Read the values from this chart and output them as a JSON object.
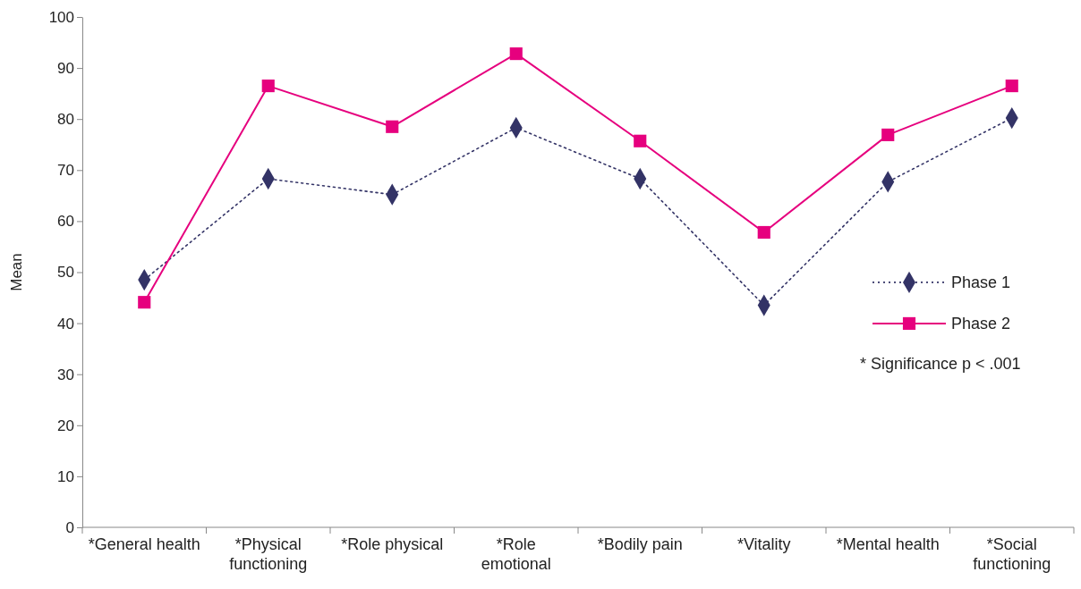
{
  "chart_data": {
    "type": "line",
    "ylabel": "Mean",
    "categories": [
      "*General health",
      "*Physical functioning",
      "*Role physical",
      "*Role emotional",
      "*Bodily pain",
      "*Vitality",
      "*Mental health",
      "*Social functioning"
    ],
    "series": [
      {
        "name": "Phase 1",
        "color": "#333366",
        "marker": "diamond",
        "line_style": "dotted",
        "values": [
          48.5,
          68.3,
          65.2,
          78.3,
          68.3,
          43.5,
          67.7,
          80.2
        ]
      },
      {
        "name": "Phase 2",
        "color": "#e6007e",
        "marker": "square",
        "line_style": "solid",
        "values": [
          44.1,
          86.5,
          78.5,
          92.8,
          75.7,
          57.8,
          76.9,
          86.5
        ]
      }
    ],
    "ylim": [
      0,
      100
    ],
    "yticks": [
      0,
      10,
      20,
      30,
      40,
      50,
      60,
      70,
      80,
      90,
      100
    ],
    "grid": false,
    "legend": "right",
    "annotations": [
      "* Significance p < .001"
    ]
  }
}
